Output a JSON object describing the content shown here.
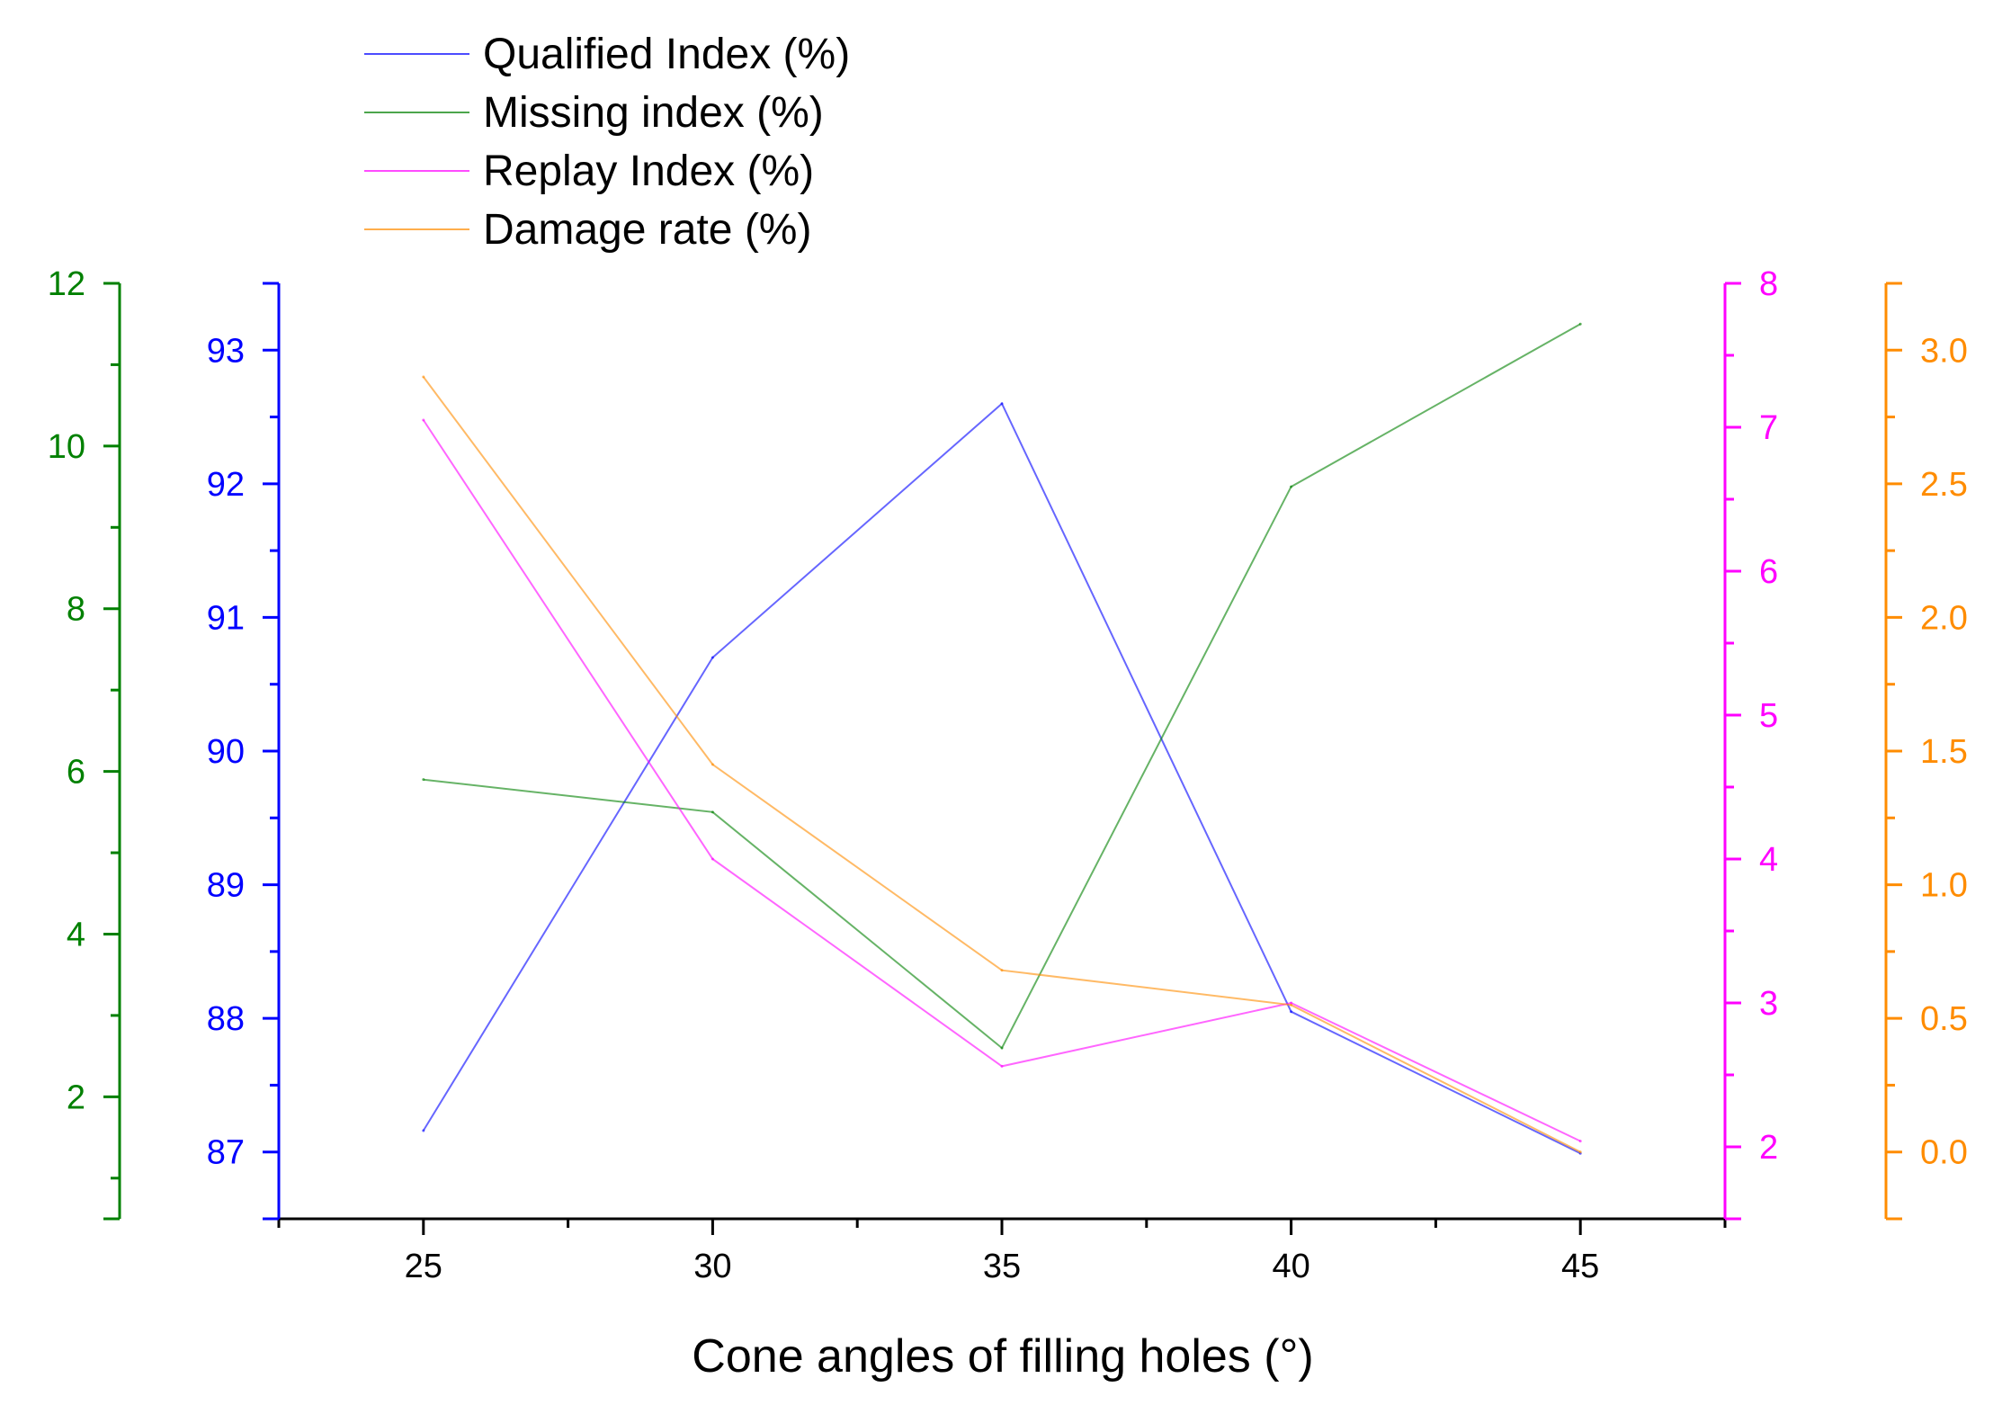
{
  "chart_data": {
    "type": "line",
    "xlabel": "Cone angles of filling holes (°)",
    "x": [
      25,
      30,
      35,
      40,
      45
    ],
    "xlim": [
      22.5,
      47.5
    ],
    "x_ticks": [
      25,
      30,
      35,
      40,
      45
    ],
    "grid": false,
    "legend_position": "top-left",
    "series": [
      {
        "name": "Qualified Index (%)",
        "axis": "qualified",
        "color": "#0000ff",
        "values": [
          87.16,
          90.7,
          92.6,
          88.05,
          86.99
        ]
      },
      {
        "name": "Missing index (%)",
        "axis": "missing",
        "color": "#008000",
        "values": [
          5.9,
          5.5,
          2.6,
          9.5,
          11.5
        ]
      },
      {
        "name": "Replay Index (%)",
        "axis": "replay",
        "color": "#ff00ff",
        "values": [
          7.05,
          4.0,
          2.56,
          3.0,
          2.04
        ]
      },
      {
        "name": "Damage rate (%)",
        "axis": "damage",
        "color": "#ff8c00",
        "values": [
          2.9,
          1.45,
          0.68,
          0.55,
          0.0
        ]
      }
    ],
    "axes": {
      "missing": {
        "side": "left-outer",
        "color": "#008000",
        "range": [
          0.5,
          12
        ],
        "ticks": [
          "2",
          "4",
          "6",
          "8",
          "10",
          "12"
        ]
      },
      "qualified": {
        "side": "left-inner",
        "color": "#0000ff",
        "range": [
          86.5,
          93.5
        ],
        "ticks": [
          "87",
          "88",
          "89",
          "90",
          "91",
          "92",
          "93"
        ]
      },
      "replay": {
        "side": "right-inner",
        "color": "#ff00ff",
        "range": [
          1.5,
          8
        ],
        "ticks": [
          "2",
          "3",
          "4",
          "5",
          "6",
          "7",
          "8"
        ]
      },
      "damage": {
        "side": "right-outer",
        "color": "#ff8c00",
        "range": [
          -0.25,
          3.25
        ],
        "ticks": [
          "0.0",
          "0.5",
          "1.0",
          "1.5",
          "2.0",
          "2.5",
          "3.0"
        ]
      }
    }
  }
}
